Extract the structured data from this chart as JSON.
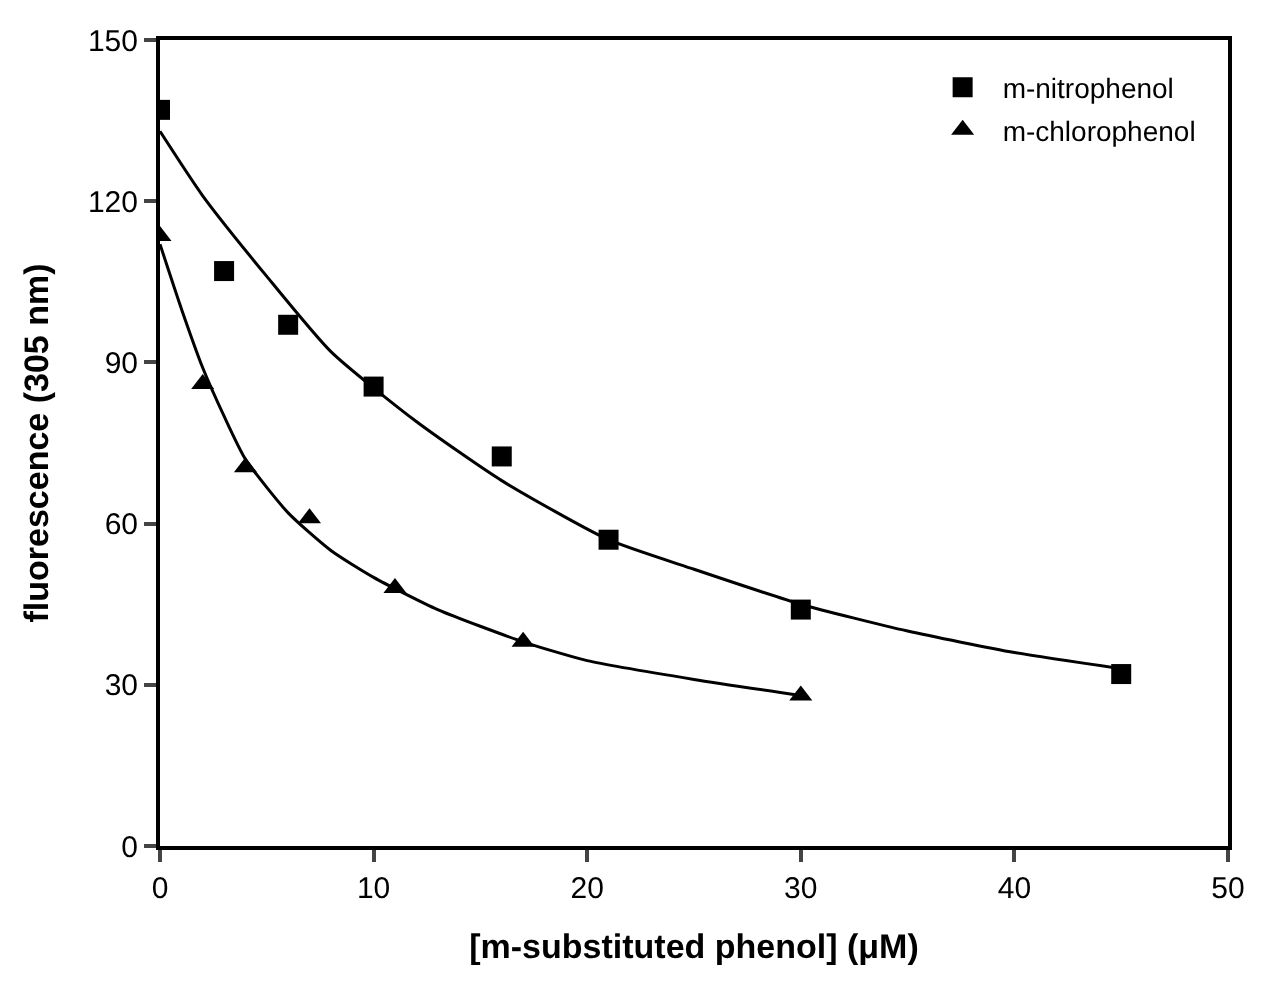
{
  "chart_data": {
    "type": "scatter",
    "xlabel": "[m-substituted phenol] (μM)",
    "ylabel": "fluorescence (305 nm)",
    "xlim": [
      0,
      50
    ],
    "xticks": [
      0,
      10,
      20,
      30,
      40,
      50
    ],
    "ylim": [
      0,
      150
    ],
    "yticks": [
      0,
      30,
      60,
      90,
      120,
      150
    ],
    "legend": "top right",
    "series": [
      {
        "name": "m-nitrophenol",
        "color": "#000000",
        "marker": "square",
        "x": [
          0,
          3,
          6,
          10,
          16,
          21,
          30,
          45
        ],
        "values": [
          137,
          107,
          97,
          85.5,
          72.5,
          57,
          44,
          32
        ]
      },
      {
        "name": "m-chlorophenol",
        "color": "#000000",
        "marker": "triangle",
        "x": [
          0,
          2,
          4,
          7,
          11,
          17,
          30
        ],
        "values": [
          113.5,
          86,
          70.5,
          61,
          48,
          38,
          28
        ]
      },
      {
        "type": "line",
        "color": "#000000",
        "marker": "none",
        "x": [
          0,
          2,
          5,
          8,
          12,
          16,
          21,
          25,
          30,
          35,
          40,
          45
        ],
        "values": [
          133,
          121,
          106,
          92,
          79,
          68,
          57,
          51.5,
          45,
          40,
          36,
          33
        ]
      },
      {
        "type": "line",
        "color": "#000000",
        "marker": "none",
        "x": [
          0,
          1,
          2,
          3,
          4,
          6,
          8,
          10,
          13,
          17,
          20,
          25,
          30
        ],
        "values": [
          112,
          100,
          89,
          80,
          72,
          62,
          55,
          50,
          44,
          38,
          34.5,
          31,
          28
        ]
      }
    ]
  }
}
